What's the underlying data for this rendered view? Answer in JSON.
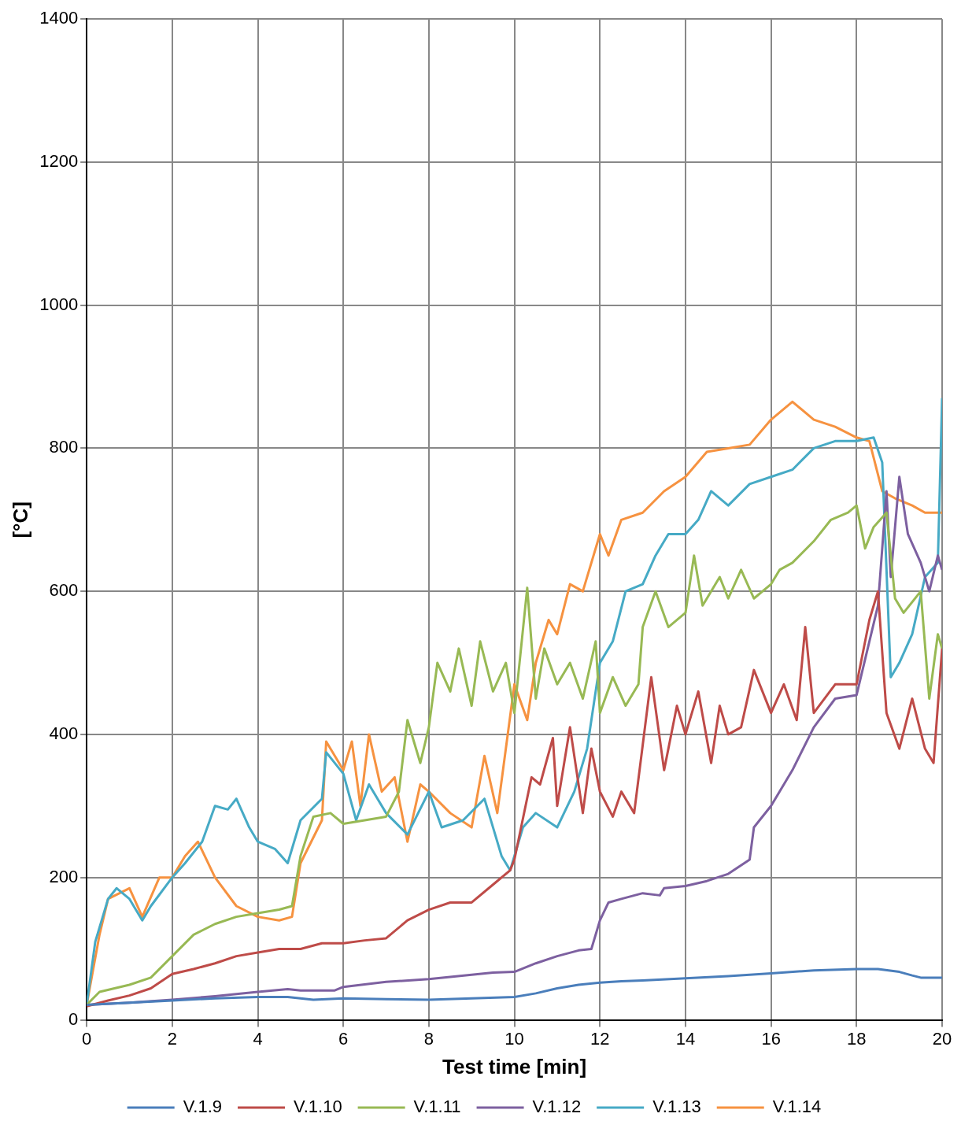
{
  "chart_data": {
    "type": "line",
    "xlabel": "Test time [min]",
    "ylabel": "[°C]",
    "xlim": [
      0,
      20
    ],
    "xticks": [
      0,
      2,
      4,
      6,
      8,
      10,
      12,
      14,
      16,
      18,
      20
    ],
    "ylim": [
      0,
      1400
    ],
    "yticks": [
      0,
      200,
      400,
      600,
      800,
      1000,
      1200,
      1400
    ],
    "grid": true,
    "legend": "bottom",
    "marker": "none",
    "line_style": "solid",
    "series": [
      {
        "name": "V.1.9",
        "color": "#4a7ebb",
        "x": [
          0,
          1,
          2,
          3,
          4,
          4.7,
          5.3,
          6,
          7,
          8,
          9,
          10,
          10.5,
          11,
          11.5,
          12,
          12.5,
          13,
          14,
          15,
          16,
          17,
          18,
          18.5,
          19,
          19.3,
          19.5,
          20
        ],
        "values": [
          22,
          25,
          28,
          31,
          33,
          33,
          29,
          31,
          30,
          29,
          31,
          33,
          38,
          45,
          50,
          53,
          55,
          56,
          59,
          62,
          66,
          70,
          72,
          72,
          68,
          63,
          60,
          60
        ]
      },
      {
        "name": "V.1.10",
        "color": "#be4b48",
        "x": [
          0,
          0.5,
          1,
          1.5,
          2,
          2.5,
          3,
          3.5,
          4,
          4.5,
          5,
          5.5,
          6,
          6.5,
          7,
          7.5,
          8,
          8.5,
          9,
          9.5,
          9.9,
          10,
          10.4,
          10.6,
          10.9,
          11,
          11.3,
          11.6,
          11.8,
          12,
          12.3,
          12.5,
          12.8,
          13,
          13.2,
          13.5,
          13.8,
          14,
          14.3,
          14.6,
          14.8,
          15,
          15.3,
          15.6,
          16,
          16.3,
          16.6,
          16.8,
          17,
          17.5,
          18,
          18.3,
          18.5,
          18.7,
          19,
          19.3,
          19.6,
          19.8,
          20
        ],
        "values": [
          20,
          28,
          35,
          45,
          65,
          72,
          80,
          90,
          95,
          100,
          100,
          108,
          108,
          112,
          115,
          140,
          155,
          165,
          165,
          190,
          210,
          225,
          340,
          330,
          395,
          300,
          410,
          290,
          380,
          320,
          285,
          320,
          290,
          385,
          480,
          350,
          440,
          400,
          460,
          360,
          440,
          400,
          410,
          490,
          430,
          470,
          420,
          550,
          430,
          470,
          470,
          560,
          600,
          430,
          380,
          450,
          380,
          360,
          520
        ]
      },
      {
        "name": "V.1.11",
        "color": "#98b954",
        "x": [
          0,
          0.3,
          1,
          1.5,
          2,
          2.5,
          3,
          3.5,
          4,
          4.5,
          4.8,
          5,
          5.3,
          5.7,
          6,
          6.5,
          7,
          7.3,
          7.5,
          7.8,
          8,
          8.2,
          8.5,
          8.7,
          9,
          9.2,
          9.5,
          9.8,
          10,
          10.3,
          10.5,
          10.7,
          11,
          11.3,
          11.6,
          11.9,
          12,
          12.3,
          12.6,
          12.9,
          13,
          13.3,
          13.6,
          14,
          14.2,
          14.4,
          14.8,
          15,
          15.3,
          15.6,
          16,
          16.2,
          16.5,
          17,
          17.4,
          17.8,
          18,
          18.2,
          18.4,
          18.7,
          18.9,
          19.1,
          19.5,
          19.7,
          19.9,
          20
        ],
        "values": [
          22,
          40,
          50,
          60,
          90,
          120,
          135,
          145,
          150,
          155,
          160,
          230,
          285,
          290,
          275,
          280,
          285,
          320,
          420,
          360,
          410,
          500,
          460,
          520,
          440,
          530,
          460,
          500,
          430,
          605,
          450,
          520,
          470,
          500,
          450,
          530,
          430,
          480,
          440,
          470,
          550,
          600,
          550,
          570,
          650,
          580,
          620,
          590,
          630,
          590,
          610,
          630,
          640,
          670,
          700,
          710,
          720,
          660,
          690,
          710,
          590,
          570,
          600,
          450,
          540,
          520
        ]
      },
      {
        "name": "V.1.12",
        "color": "#7d60a0",
        "x": [
          0,
          1,
          2,
          3,
          4,
          4.7,
          5,
          5.8,
          6,
          7,
          8,
          9,
          9.5,
          10,
          10.5,
          11,
          11.5,
          11.8,
          12,
          12.2,
          12.5,
          13,
          13.4,
          13.5,
          14,
          14.5,
          15,
          15.5,
          15.6,
          16,
          16.5,
          17,
          17.5,
          18,
          18.5,
          18.7,
          18.8,
          19,
          19.2,
          19.5,
          19.7,
          19.9,
          20
        ],
        "values": [
          22,
          25,
          29,
          34,
          40,
          44,
          42,
          42,
          47,
          54,
          58,
          64,
          67,
          68,
          80,
          90,
          98,
          100,
          140,
          165,
          170,
          178,
          175,
          185,
          188,
          195,
          205,
          225,
          270,
          300,
          350,
          410,
          450,
          455,
          580,
          740,
          620,
          760,
          680,
          640,
          600,
          650,
          630
        ]
      },
      {
        "name": "V.1.13",
        "color": "#46aac5",
        "x": [
          0,
          0.2,
          0.5,
          0.7,
          1,
          1.3,
          1.5,
          2,
          2.3,
          2.7,
          3,
          3.3,
          3.5,
          3.8,
          4,
          4.4,
          4.7,
          5,
          5.5,
          5.6,
          6,
          6.3,
          6.6,
          7,
          7.5,
          8,
          8.3,
          8.8,
          9.3,
          9.7,
          9.9,
          10.2,
          10.5,
          11,
          11.4,
          11.7,
          12,
          12.3,
          12.6,
          13,
          13.3,
          13.6,
          14,
          14.3,
          14.6,
          15,
          15.5,
          16,
          16.5,
          17,
          17.5,
          18,
          18.4,
          18.6,
          18.8,
          19,
          19.3,
          19.6,
          19.9,
          20
        ],
        "values": [
          22,
          110,
          170,
          185,
          170,
          140,
          160,
          200,
          220,
          250,
          300,
          295,
          310,
          270,
          250,
          240,
          220,
          280,
          310,
          375,
          345,
          280,
          330,
          290,
          260,
          320,
          270,
          280,
          310,
          230,
          210,
          270,
          290,
          270,
          320,
          380,
          500,
          530,
          600,
          610,
          650,
          680,
          680,
          700,
          740,
          720,
          750,
          760,
          770,
          800,
          810,
          810,
          815,
          780,
          480,
          500,
          540,
          620,
          640,
          870
        ]
      },
      {
        "name": "V.1.14",
        "color": "#f69240",
        "x": [
          0,
          0.3,
          0.5,
          1,
          1.3,
          1.7,
          2,
          2.3,
          2.6,
          3,
          3.5,
          4,
          4.5,
          4.8,
          5,
          5.5,
          5.6,
          6,
          6.2,
          6.4,
          6.6,
          6.9,
          7.2,
          7.5,
          7.8,
          8,
          8.5,
          9,
          9.3,
          9.6,
          10,
          10.3,
          10.5,
          10.8,
          11,
          11.3,
          11.6,
          12,
          12.2,
          12.5,
          13,
          13.5,
          14,
          14.5,
          15,
          15.5,
          16,
          16.5,
          17,
          17.5,
          18,
          18.3,
          18.6,
          18.9,
          19.3,
          19.6,
          20
        ],
        "values": [
          22,
          120,
          170,
          185,
          145,
          200,
          200,
          230,
          250,
          200,
          160,
          145,
          140,
          145,
          220,
          280,
          390,
          350,
          390,
          300,
          400,
          320,
          340,
          250,
          330,
          320,
          290,
          270,
          370,
          290,
          470,
          420,
          500,
          560,
          540,
          610,
          600,
          680,
          650,
          700,
          710,
          740,
          760,
          795,
          800,
          805,
          840,
          865,
          840,
          830,
          815,
          810,
          740,
          730,
          720,
          710,
          710
        ]
      }
    ]
  }
}
